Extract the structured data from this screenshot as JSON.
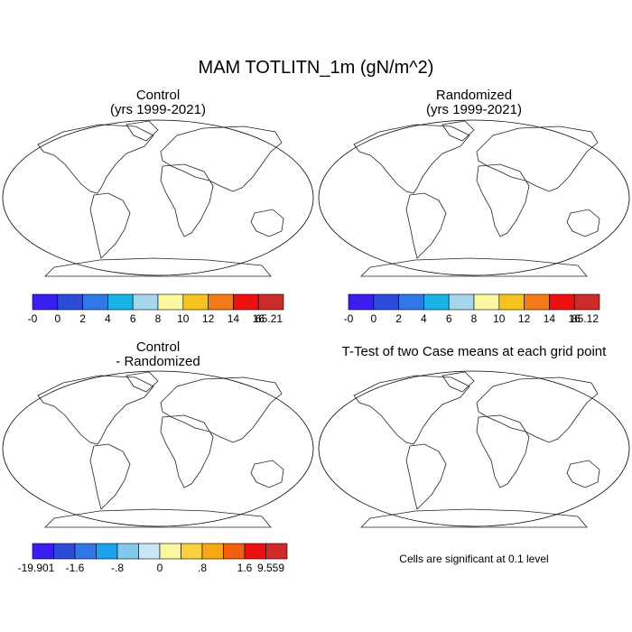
{
  "figure": {
    "title": "MAM TOTLITN_1m (gN/m^2)"
  },
  "panels": [
    {
      "id": "control",
      "title_line1": "Control",
      "title_line2": "(yrs 1999-2021)",
      "colorbar": {
        "colors": [
          "#3a1ef0",
          "#2b4bd8",
          "#2f78e6",
          "#1ab3e6",
          "#a6d6ec",
          "#fbf6a0",
          "#f8c21e",
          "#f37a18",
          "#ee1010",
          "#cd2a2a"
        ],
        "labels": [
          "-0",
          "0",
          "2",
          "4",
          "6",
          "8",
          "10",
          "12",
          "14",
          "16",
          "65.21"
        ]
      }
    },
    {
      "id": "randomized",
      "title_line1": "Randomized",
      "title_line2": "(yrs 1999-2021)",
      "colorbar": {
        "colors": [
          "#3a1ef0",
          "#2b4bd8",
          "#2f78e6",
          "#1ab3e6",
          "#a6d6ec",
          "#fbf6a0",
          "#f8c21e",
          "#f37a18",
          "#ee1010",
          "#cd2a2a"
        ],
        "labels": [
          "-0",
          "0",
          "2",
          "4",
          "6",
          "8",
          "10",
          "12",
          "14",
          "16",
          "85.12"
        ]
      }
    },
    {
      "id": "difference",
      "title_line1": "Control",
      "title_line2": "- Randomized",
      "colorbar": {
        "colors": [
          "#3a1ef0",
          "#2b4bd8",
          "#2f78e6",
          "#1ea2ee",
          "#84c8ee",
          "#c8e6f4",
          "#fbf6a0",
          "#fbd040",
          "#f8a814",
          "#f06010",
          "#ee1010",
          "#cd2a2a"
        ],
        "labels": [
          "-19.901",
          "-1.6",
          "-.8",
          "0",
          ".8",
          "1.6",
          "9.559"
        ]
      }
    },
    {
      "id": "ttest",
      "title_line1": "T-Test of two Case means at each grid point",
      "note": "Cells are significant at 0.1 level"
    }
  ]
}
